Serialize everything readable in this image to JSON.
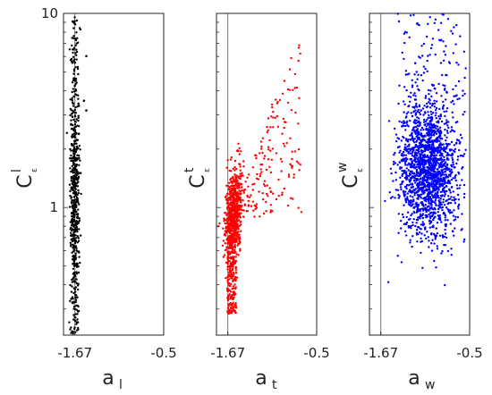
{
  "chart_data": [
    {
      "type": "scatter",
      "ylabel": "C",
      "ylabel_sup": "l",
      "ylabel_sub": "ε",
      "xlabel": "a",
      "xlabel_sub": "l",
      "xticks": [
        "-1.67",
        "-0.5"
      ],
      "yticks": [
        "10",
        "1"
      ],
      "y_scale": "log",
      "ylim": [
        0.22,
        10
      ],
      "xlim": [
        -1.82,
        -0.5
      ],
      "reference_line_x": -1.67,
      "color": "#000000",
      "series": [
        {
          "distribution": {
            "n": 620,
            "x_center": -1.67,
            "x_spread": 0.06,
            "y_log_min": -0.65,
            "y_log_max": 0.98,
            "y_density_peak_log": 0.1,
            "outliers": [
              [
                -1.52,
                0.78
              ],
              [
                -1.52,
                0.5
              ],
              [
                -1.55,
                0.55
              ]
            ]
          }
        }
      ]
    },
    {
      "type": "scatter",
      "ylabel": "C",
      "ylabel_sup": "t",
      "ylabel_sub": "ε",
      "xlabel": "a",
      "xlabel_sub": "t",
      "xticks": [
        "-1.67",
        "-0.5"
      ],
      "yticks": [],
      "y_scale": "log",
      "ylim": [
        0.22,
        10
      ],
      "xlim": [
        -1.82,
        -0.5
      ],
      "reference_line_x": -1.67,
      "color": "#ff0000",
      "series": [
        {
          "distribution": {
            "n": 1100,
            "x_center": -1.62,
            "x_spread": 0.12,
            "y_log_min": -0.55,
            "y_log_max": 0.9,
            "core_x": [
              -1.66,
              -1.5
            ],
            "core_y_log": [
              -0.25,
              0.2
            ],
            "tail_up_right": true
          }
        }
      ]
    },
    {
      "type": "scatter",
      "ylabel": "C",
      "ylabel_sup": "w",
      "ylabel_sub": "ε",
      "xlabel": "a",
      "xlabel_sub": "w",
      "xticks": [
        "-1.67",
        "-0.5"
      ],
      "yticks": [],
      "y_scale": "log",
      "ylim": [
        0.22,
        10
      ],
      "xlim": [
        -1.82,
        -0.5
      ],
      "reference_line_x": -1.67,
      "color": "#0000ff",
      "series": [
        {
          "distribution": {
            "n": 1900,
            "x_center": -1.05,
            "x_spread": 0.18,
            "y_log_min": -0.22,
            "y_log_max": 1.0,
            "core_y_log": [
              -0.05,
              0.45
            ]
          }
        }
      ]
    }
  ]
}
